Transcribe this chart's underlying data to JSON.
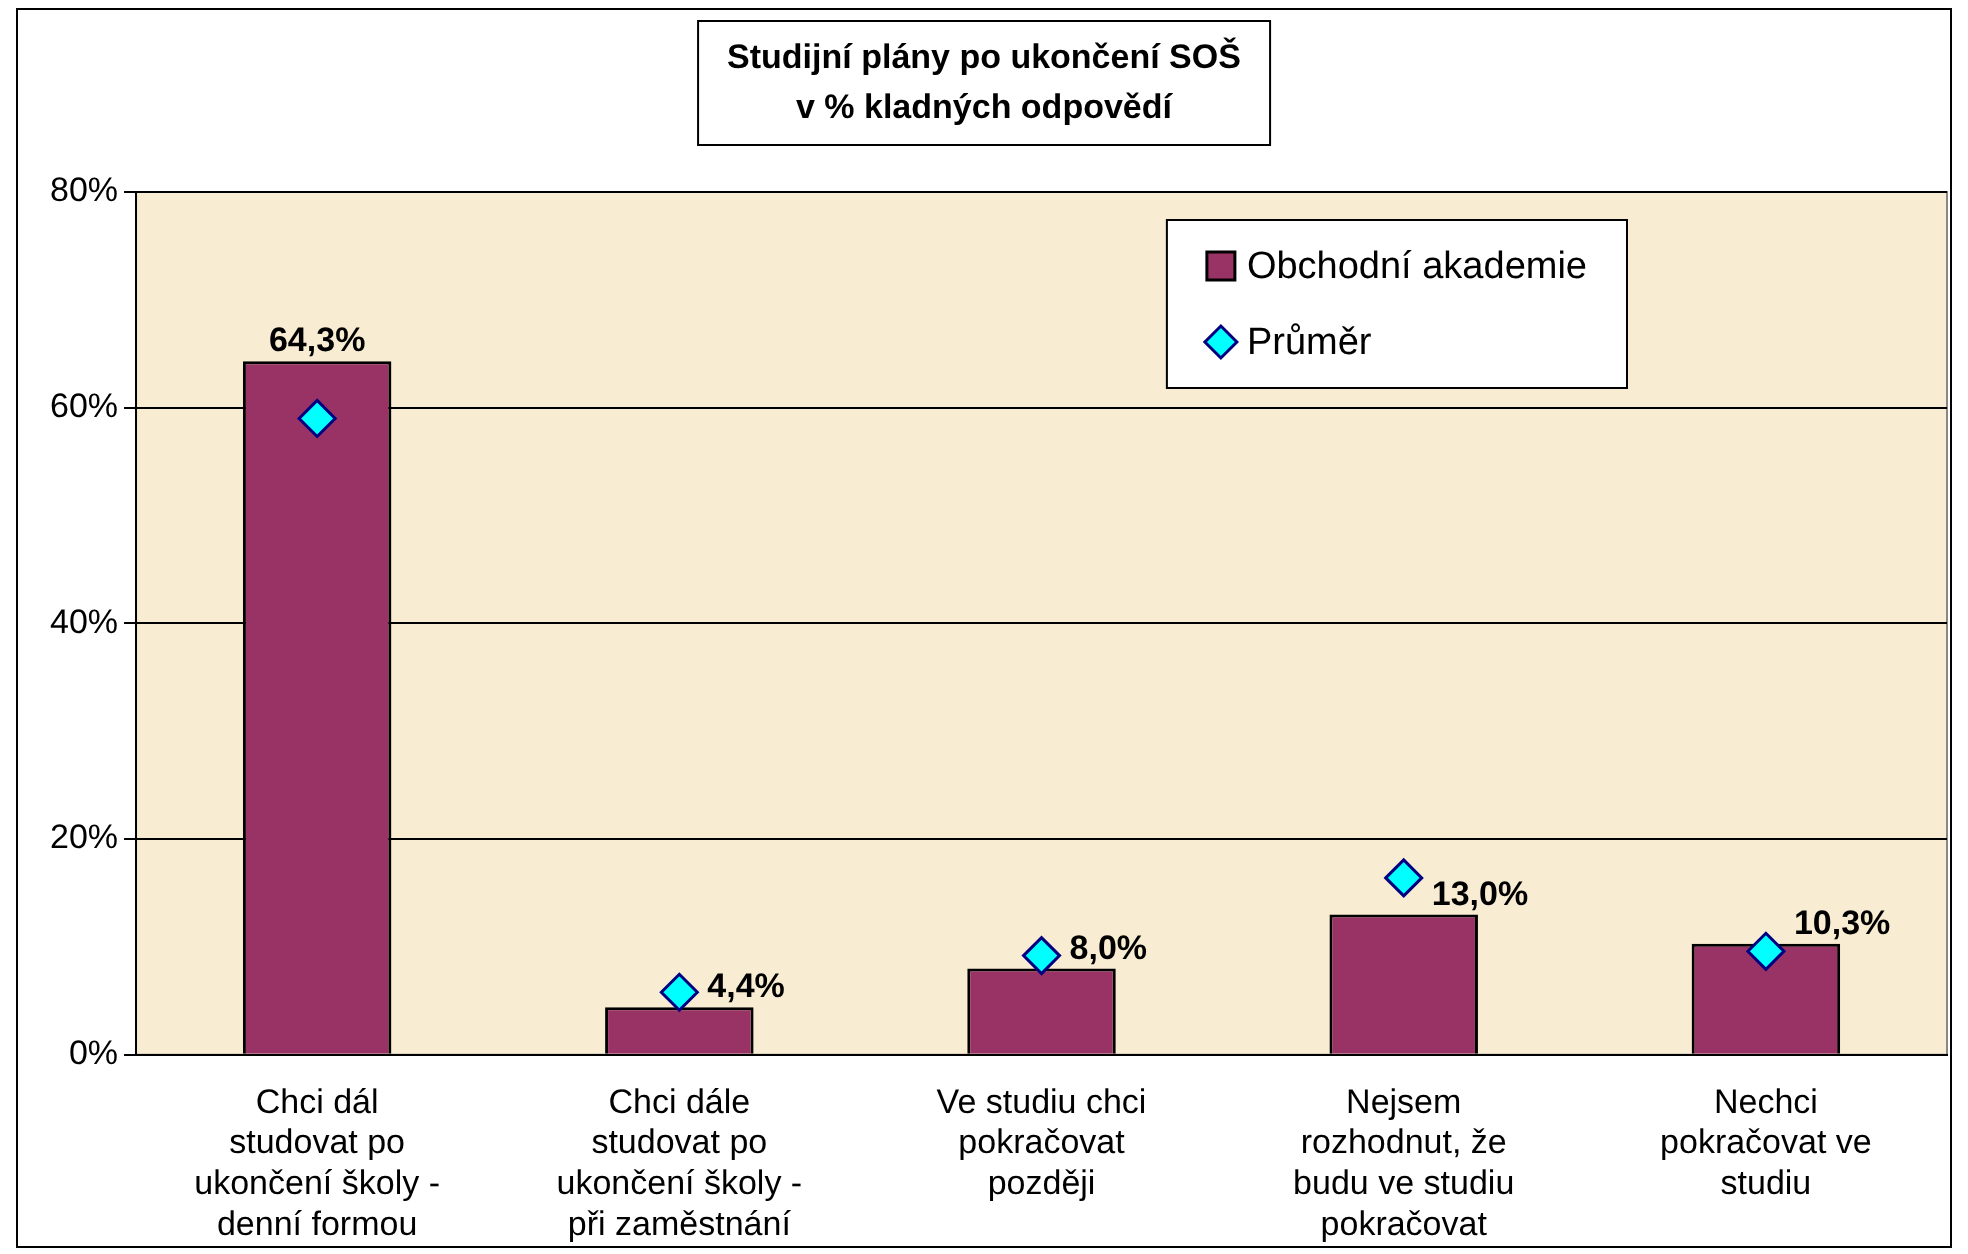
{
  "chart_data": {
    "type": "bar",
    "title": "Studijní plány po ukončení SOŠ\nv % kladných odpovědí",
    "categories": [
      "Chci dál studovat po ukončení školy - denní formou",
      "Chci dále studovat po ukončení školy - při zaměstnání",
      "Ve studiu chci pokračovat později",
      "Nejsem rozhodnut, že budu ve studiu pokračovat",
      "Nechci pokračovat ve studiu"
    ],
    "series": [
      {
        "name": "Obchodní akademie",
        "color": "#993366",
        "values": [
          64.3,
          4.4,
          8.0,
          13.0,
          10.3
        ],
        "value_labels": [
          "64,3%",
          "4,4%",
          "8,0%",
          "13,0%",
          "10,3%"
        ]
      },
      {
        "name": "Průměr",
        "type": "scatter",
        "color": "#00ffff",
        "marker": "diamond",
        "values": [
          59.0,
          5.8,
          9.2,
          16.4,
          9.6
        ]
      }
    ],
    "ylim": [
      0,
      80
    ],
    "yticks": [
      {
        "value": 0,
        "label": "0%"
      },
      {
        "value": 20,
        "label": "20%"
      },
      {
        "value": 40,
        "label": "40%"
      },
      {
        "value": 60,
        "label": "60%"
      },
      {
        "value": 80,
        "label": "80%"
      }
    ],
    "grid": "y",
    "legend": "top right"
  }
}
